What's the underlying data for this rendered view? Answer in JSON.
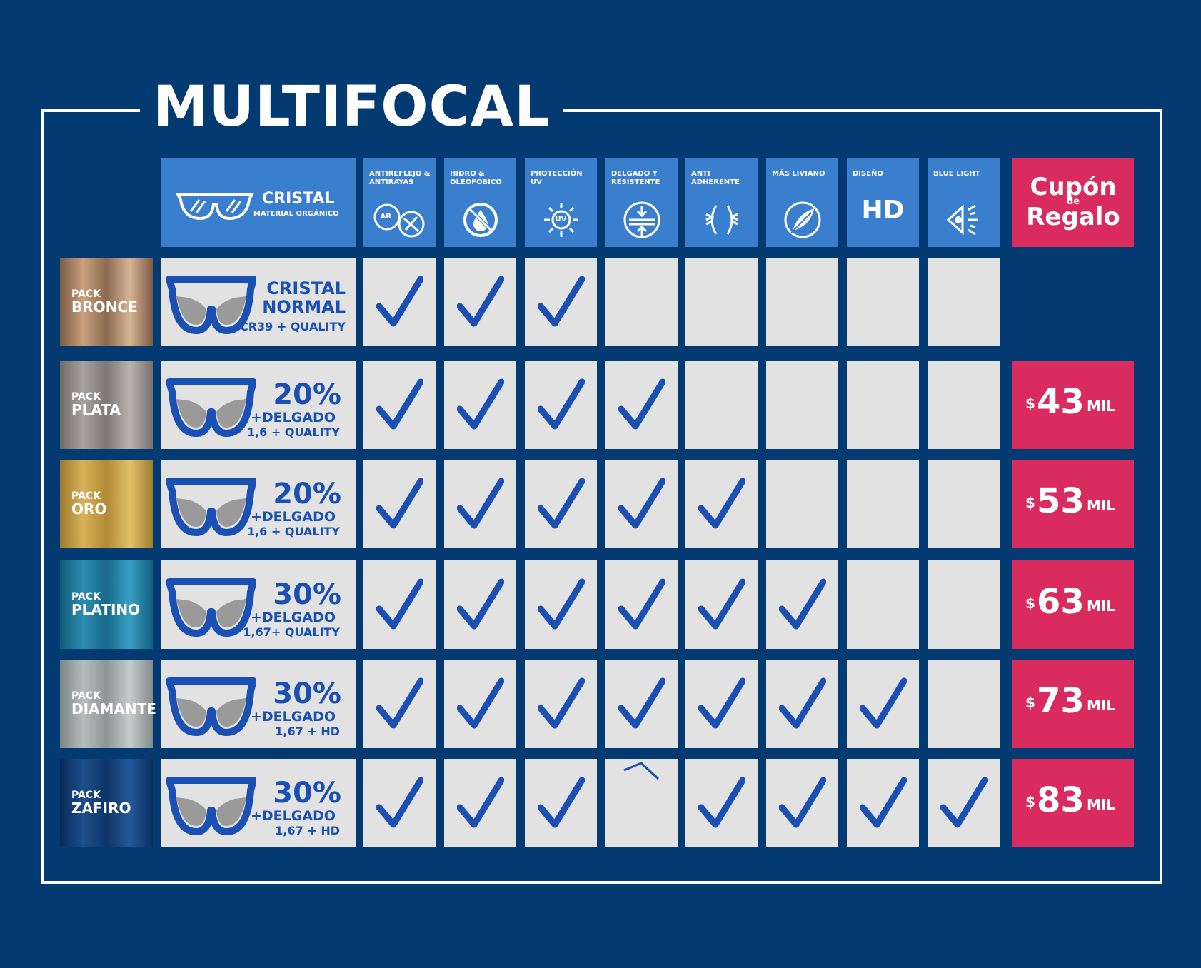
{
  "title": "MULTIFOCAL",
  "header": {
    "cristal_title": "CRISTAL",
    "cristal_sub": "MATERIAL ORGÁNICO",
    "features": [
      {
        "label": "ANTIREFLEJO & ANTIRAYAS",
        "icon": "antireflejo-icon",
        "badge": "AR"
      },
      {
        "label": "HIDRO & OLEOFÓBICO",
        "icon": "drop-icon"
      },
      {
        "label": "PROTECCIÓN UV",
        "icon": "sun-uv-icon",
        "badge": "UV"
      },
      {
        "label": "DELGADO Y RESISTENTE",
        "icon": "thin-lens-icon"
      },
      {
        "label": "ANTI ADHERENTE",
        "icon": "anti-adherent-icon"
      },
      {
        "label": "MÁS LIVIANO",
        "icon": "feather-icon"
      },
      {
        "label": "DISEÑO",
        "icon": "hd-icon",
        "text": "HD"
      },
      {
        "label": "BLUE LIGHT",
        "icon": "blue-light-eye-icon"
      }
    ],
    "cupon": {
      "line1": "Cupón",
      "line2": "de",
      "line3": "Regalo"
    }
  },
  "colors": {
    "background": "#033a72",
    "header_blue": "#3a7fce",
    "cell_gray": "#e2e2e2",
    "check_blue": "#1a50b4",
    "coupon_pink": "#d92b5e"
  },
  "rows": [
    {
      "pack_label": "PACK",
      "pack_name": "BRONCE",
      "lens_line1": "CRISTAL",
      "lens_line2": "NORMAL",
      "lens_line3": "CR39 + QUALITY",
      "checks": [
        1,
        1,
        1,
        0,
        0,
        0,
        0,
        0
      ],
      "price": null
    },
    {
      "pack_label": "PACK",
      "pack_name": "PLATA",
      "lens_line1": "20%",
      "lens_line2": "+DELGADO",
      "lens_line3": "1,6 + QUALITY",
      "checks": [
        1,
        1,
        1,
        1,
        0,
        0,
        0,
        0
      ],
      "price": {
        "currency": "$",
        "amount": "43",
        "unit": "MIL"
      }
    },
    {
      "pack_label": "PACK",
      "pack_name": "ORO",
      "lens_line1": "20%",
      "lens_line2": "+DELGADO",
      "lens_line3": "1,6 + QUALITY",
      "checks": [
        1,
        1,
        1,
        1,
        1,
        0,
        0,
        0
      ],
      "price": {
        "currency": "$",
        "amount": "53",
        "unit": "MIL"
      }
    },
    {
      "pack_label": "PACK",
      "pack_name": "PLATINO",
      "lens_line1": "30%",
      "lens_line2": "+DELGADO",
      "lens_line3": "1,67+ QUALITY",
      "checks": [
        1,
        1,
        1,
        1,
        1,
        1,
        0,
        0
      ],
      "price": {
        "currency": "$",
        "amount": "63",
        "unit": "MIL"
      }
    },
    {
      "pack_label": "PACK",
      "pack_name": "DIAMANTE",
      "lens_line1": "30%",
      "lens_line2": "+DELGADO",
      "lens_line3": "1,67 + HD",
      "checks": [
        1,
        1,
        1,
        1,
        1,
        1,
        1,
        0
      ],
      "price": {
        "currency": "$",
        "amount": "73",
        "unit": "MIL"
      }
    },
    {
      "pack_label": "PACK",
      "pack_name": "ZAFIRO",
      "lens_line1": "30%",
      "lens_line2": "+DELGADO",
      "lens_line3": "1,67 + HD",
      "checks": [
        1,
        1,
        1,
        2,
        1,
        1,
        1,
        1
      ],
      "price": {
        "currency": "$",
        "amount": "83",
        "unit": "MIL"
      }
    }
  ],
  "pack_gradients": [
    "linear-gradient(90deg,#7a5a42,#c9a07e,#8b6a50,#d6b494,#7d5c44)",
    "linear-gradient(90deg,#6e6a66,#a8a39f,#7d7873,#b9b4af,#76716c)",
    "linear-gradient(90deg,#9c7a2c,#d8b25a,#b08a34,#e1c06a,#a17e2e)",
    "linear-gradient(90deg,#0f5a78,#2c8db0,#17688a,#3aa0c4,#12607f)",
    "linear-gradient(90deg,#7d8585,#b6bcbc,#8e9595,#c6cbcb,#848b8b)",
    "linear-gradient(90deg,#0a2a58,#1c4f8c,#0f3468,#235a9a,#0c2e5e)"
  ]
}
